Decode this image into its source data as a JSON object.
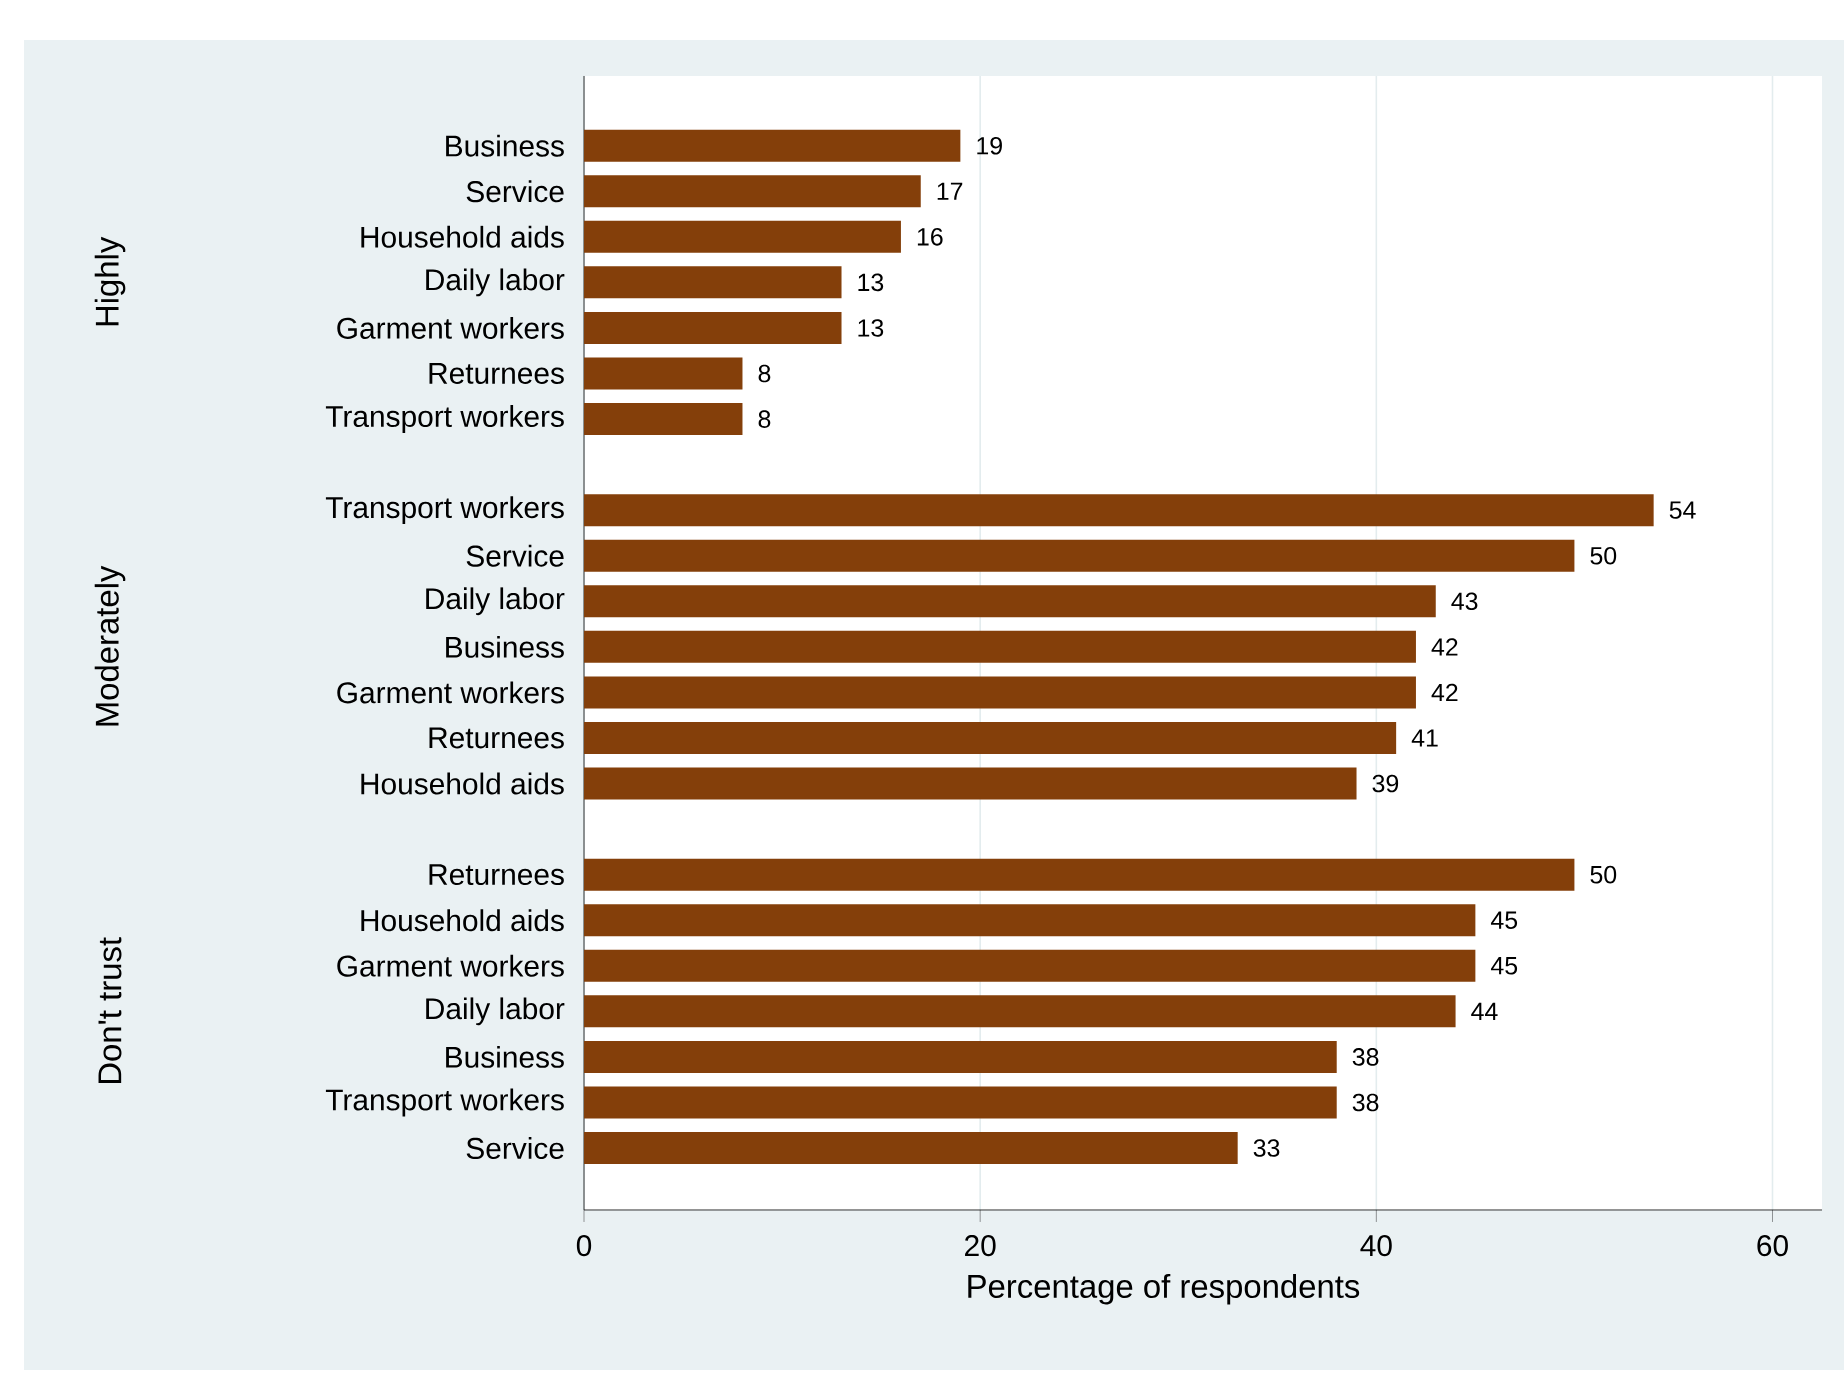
{
  "chart_data": {
    "type": "bar",
    "orientation": "horizontal",
    "xlabel": "Percentage of respondents",
    "categories": [
      "Business",
      "Service",
      "Household aids",
      "Daily labor",
      "Garment workers",
      "Returnees",
      "Transport workers",
      null,
      "Transport workers",
      "Service",
      "Daily labor",
      "Business",
      "Garment workers",
      "Returnees",
      "Household aids",
      null,
      "Returnees",
      "Household aids",
      "Garment workers",
      "Daily labor",
      "Business",
      "Transport workers",
      "Service"
    ],
    "values": [
      19,
      17,
      16,
      13,
      13,
      8,
      8,
      null,
      54,
      50,
      43,
      42,
      42,
      41,
      39,
      null,
      50,
      45,
      45,
      44,
      38,
      38,
      33
    ],
    "color": "#843f0a",
    "data_labels": true,
    "annotations": [
      "Highly",
      "Moderately",
      "Don't trust"
    ],
    "xlim": [
      0,
      62.5
    ],
    "xticks": [
      0,
      20,
      40,
      60
    ],
    "grid": "x"
  }
}
